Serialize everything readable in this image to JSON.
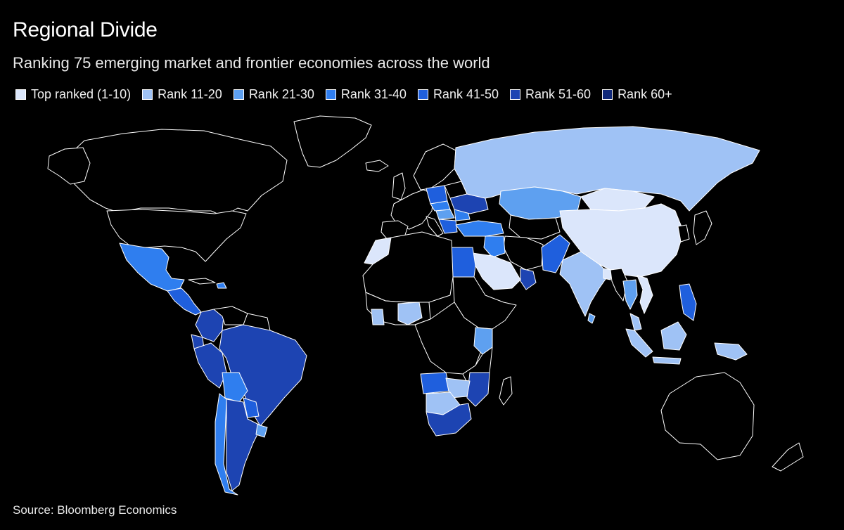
{
  "title": "Regional Divide",
  "subtitle": "Ranking 75 emerging market and frontier economies across the world",
  "legend": [
    {
      "label": "Top ranked (1-10)",
      "color": "#dbe6fb"
    },
    {
      "label": "Rank 11-20",
      "color": "#9fc2f5"
    },
    {
      "label": "Rank 21-30",
      "color": "#5ea0f0"
    },
    {
      "label": "Rank 31-40",
      "color": "#2f7eef"
    },
    {
      "label": "Rank 41-50",
      "color": "#1f5fdd"
    },
    {
      "label": "Rank 51-60",
      "color": "#1d44b2"
    },
    {
      "label": "Rank 60+",
      "color": "#10287a"
    }
  ],
  "source": "Source: Bloomberg Economics",
  "colors": {
    "background": "#000000",
    "outline": "#ffffff",
    "unranked": "#000000"
  }
}
